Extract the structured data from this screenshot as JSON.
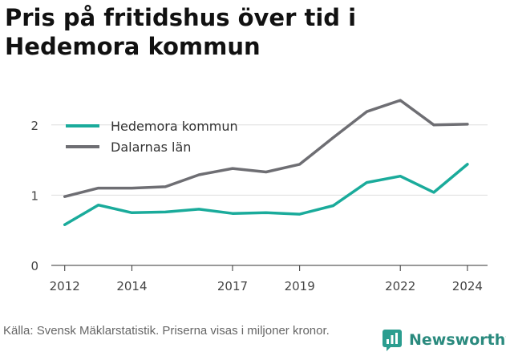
{
  "title": "Pris på fritidshus över tid i Hedemora kommun",
  "footer": "Källa: Svensk Mäklarstatistik. Priserna visas i miljoner kronor.",
  "brand": {
    "name": "Newsworthy",
    "icon": "newsworthy-logo-icon",
    "color": "#2a9d8f"
  },
  "chart_data": {
    "type": "line",
    "title": "Pris på fritidshus över tid i Hedemora kommun",
    "xlabel": "",
    "ylabel": "",
    "x": [
      2012,
      2013,
      2014,
      2015,
      2016,
      2017,
      2018,
      2019,
      2020,
      2021,
      2022,
      2023,
      2024
    ],
    "xticks": [
      "2012",
      "2014",
      "2017",
      "2019",
      "2022",
      "2024"
    ],
    "yticks": [
      "0",
      "1",
      "2"
    ],
    "ylim": [
      0,
      2.5
    ],
    "xlim": [
      2011.6,
      2024.6
    ],
    "grid": "horizontal",
    "legend": "top-left",
    "series": [
      {
        "name": "Hedemora kommun",
        "color": "#1aab9b",
        "values": [
          0.58,
          0.86,
          0.75,
          0.76,
          0.8,
          0.74,
          0.75,
          0.73,
          0.85,
          1.18,
          1.27,
          1.04,
          1.44
        ]
      },
      {
        "name": "Dalarnas län",
        "color": "#6e6e73",
        "values": [
          0.98,
          1.1,
          1.1,
          1.12,
          1.29,
          1.38,
          1.33,
          1.44,
          1.82,
          2.19,
          2.35,
          2.0,
          2.01
        ]
      }
    ]
  }
}
